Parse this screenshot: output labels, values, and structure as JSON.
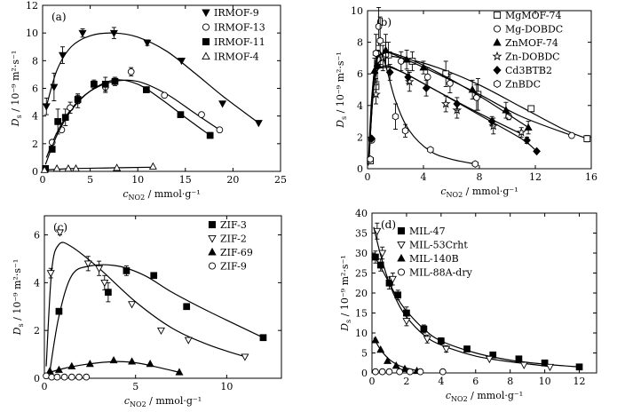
{
  "chart_data": [
    {
      "panel_label": "(a)",
      "type": "scatter",
      "xlim": [
        0,
        25
      ],
      "ylim": [
        0,
        12
      ],
      "xticks": [
        0,
        5,
        10,
        15,
        20,
        25
      ],
      "yticks": [
        0,
        2,
        4,
        6,
        8,
        10,
        12
      ],
      "xlabel_main": "c",
      "xlabel_sub": "NO2",
      "xlabel_rest": " / mmol·g⁻¹",
      "ylabel_main": "D",
      "ylabel_sub": "s",
      "ylabel_rest": " / 10⁻⁹ m²·s⁻¹",
      "legend_position": "top-right",
      "series": [
        {
          "name": "IRMOF-9",
          "marker": "triangle-down-filled",
          "x": [
            0.4,
            1.2,
            2.1,
            4.2,
            7.5,
            11.0,
            14.6,
            18.9,
            22.7
          ],
          "y": [
            4.7,
            6.1,
            8.4,
            10.0,
            10.0,
            9.3,
            8.0,
            4.9,
            3.5
          ],
          "err": [
            0.6,
            1.0,
            0.6,
            0.3,
            0.4,
            0.2,
            0,
            0,
            0
          ],
          "fit_x": [
            0.4,
            1.5,
            3,
            5,
            7.5,
            10,
            13,
            16,
            19,
            22.7
          ],
          "fit_y": [
            4.7,
            7.3,
            9.0,
            9.8,
            10.0,
            9.7,
            8.7,
            7.1,
            5.4,
            3.5
          ]
        },
        {
          "name": "IRMOF-13",
          "marker": "circle-open",
          "x": [
            1.0,
            2.0,
            2.9,
            3.7,
            6.6,
            9.3,
            12.8,
            16.7,
            18.6
          ],
          "y": [
            2.1,
            3.0,
            4.6,
            5.1,
            6.1,
            7.2,
            5.5,
            4.1,
            3.0
          ],
          "err": [
            0,
            0,
            0.4,
            0.5,
            0.4,
            0.3,
            0,
            0,
            0
          ],
          "fit_x": [
            0.4,
            1.5,
            3,
            5,
            7.5,
            10,
            13,
            16,
            18.6
          ],
          "fit_y": [
            1.0,
            2.8,
            4.5,
            5.8,
            6.5,
            6.5,
            5.6,
            4.2,
            3.0
          ]
        },
        {
          "name": "IRMOF-11",
          "marker": "square-filled",
          "x": [
            0.3,
            1.0,
            1.6,
            2.4,
            3.7,
            5.4,
            6.6,
            7.6,
            10.9,
            14.5,
            17.6
          ],
          "y": [
            0.2,
            1.6,
            3.6,
            3.9,
            5.2,
            6.3,
            6.3,
            6.5,
            5.9,
            4.1,
            2.6
          ],
          "err": [
            0,
            0,
            0.9,
            0.6,
            0.3,
            0.3,
            0.5,
            0.3,
            0.2,
            0,
            0
          ],
          "fit_x": [
            0.3,
            1.5,
            3,
            5,
            7.5,
            10,
            12.5,
            15,
            17.6
          ],
          "fit_y": [
            0.5,
            2.6,
            4.4,
            5.8,
            6.6,
            6.3,
            5.2,
            3.9,
            2.6
          ]
        },
        {
          "name": "IRMOF-4",
          "marker": "triangle-up-open",
          "x": [
            0.2,
            1.5,
            2.7,
            3.5,
            7.8,
            11.6
          ],
          "y": [
            0.1,
            0.2,
            0.2,
            0.2,
            0.25,
            0.35
          ],
          "err": [
            0,
            0,
            0,
            0,
            0,
            0
          ],
          "fit_x": [
            0.2,
            3,
            7,
            11.6
          ],
          "fit_y": [
            0.1,
            0.2,
            0.25,
            0.3
          ]
        }
      ]
    },
    {
      "panel_label": "(b)",
      "type": "scatter",
      "xlim": [
        0,
        16
      ],
      "ylim": [
        0,
        10
      ],
      "xticks": [
        0,
        4,
        8,
        12,
        16
      ],
      "yticks": [
        0,
        2,
        4,
        6,
        8,
        10
      ],
      "xlabel_main": "c",
      "xlabel_sub": "NO2",
      "xlabel_rest": " / mmol·g⁻¹",
      "ylabel_main": "D",
      "ylabel_sub": "s",
      "ylabel_rest": " / 10⁻⁹ m²·s⁻¹",
      "legend_position": "top-right",
      "series": [
        {
          "name": "MgMOF-74",
          "marker": "square-open",
          "x": [
            0.2,
            0.6,
            1.5,
            3.2,
            5.6,
            7.9,
            11.7,
            15.7
          ],
          "y": [
            0.5,
            5.2,
            7.2,
            6.8,
            6.0,
            4.7,
            3.8,
            1.9
          ],
          "err": [
            0,
            0.5,
            0.8,
            0.6,
            0.8,
            1.0,
            0,
            0.2
          ],
          "fit_x": [
            0.1,
            0.5,
            1.2,
            2.5,
            5,
            8,
            11,
            14,
            15.7
          ],
          "fit_y": [
            0.6,
            5.8,
            7.0,
            7.0,
            6.4,
            5.3,
            3.9,
            2.5,
            1.9
          ]
        },
        {
          "name": "Mg-DOBDC",
          "marker": "circle-open",
          "x": [
            0.3,
            0.8,
            1.3,
            2.4,
            4.3,
            5.9,
            7.8,
            10.1,
            14.6
          ],
          "y": [
            1.8,
            9.0,
            7.2,
            6.8,
            5.8,
            5.4,
            4.5,
            3.3,
            2.1
          ],
          "err": [
            0,
            1.2,
            0.8,
            0.6,
            0.6,
            0.6,
            0.8,
            0.2,
            0
          ],
          "fit_x": [
            0.1,
            0.5,
            1.2,
            2.5,
            5,
            8,
            11,
            14.6
          ],
          "fit_y": [
            0.8,
            6.2,
            7.3,
            7.0,
            6.0,
            4.7,
            3.3,
            2.1
          ]
        },
        {
          "name": "ZnMOF-74",
          "marker": "triangle-up-filled",
          "x": [
            0.5,
            1.3,
            2.8,
            4.0,
            7.5,
            9.9,
            11.5
          ],
          "y": [
            6.2,
            7.5,
            6.9,
            6.4,
            5.0,
            3.7,
            2.6
          ],
          "err": [
            0.8,
            1.0,
            0.6,
            0.4,
            0.6,
            0.5,
            0.4
          ],
          "fit_x": [
            0.1,
            0.5,
            1.2,
            2.5,
            5,
            8,
            11,
            11.5
          ],
          "fit_y": [
            0.5,
            6.3,
            7.3,
            7.1,
            6.1,
            4.6,
            2.9,
            2.6
          ]
        },
        {
          "name": "Zn-DOBDC",
          "marker": "star-open",
          "x": [
            0.6,
            1.1,
            3.0,
            5.6,
            6.4,
            9.0,
            11.0
          ],
          "y": [
            4.7,
            7.0,
            5.5,
            4.1,
            3.7,
            2.7,
            2.3
          ],
          "err": [
            0.6,
            0.8,
            0.6,
            0.5,
            0.5,
            0.5,
            0.3
          ],
          "fit_x": [
            0.1,
            0.5,
            1.2,
            2.5,
            5,
            8,
            11
          ],
          "fit_y": [
            0.5,
            5.6,
            6.4,
            6.1,
            4.9,
            3.5,
            2.2
          ]
        },
        {
          "name": "Cd3BTB2",
          "marker": "diamond-filled",
          "x": [
            0.3,
            0.7,
            1.6,
            2.9,
            4.2,
            6.4,
            8.9,
            11.4,
            12.1
          ],
          "y": [
            1.9,
            6.5,
            6.1,
            5.8,
            5.1,
            4.1,
            3.0,
            1.8,
            1.1
          ],
          "err": [
            0,
            1.0,
            0.5,
            0.4,
            0.5,
            0.4,
            0.3,
            0.2,
            0
          ],
          "fit_x": [
            0.1,
            0.5,
            1.2,
            2.5,
            5,
            8,
            11,
            12.1
          ],
          "fit_y": [
            0.5,
            5.5,
            6.5,
            6.1,
            4.9,
            3.4,
            1.9,
            1.1
          ]
        },
        {
          "name": "ZnBDC",
          "marker": "hexagon-open",
          "x": [
            0.2,
            0.6,
            0.9,
            2.0,
            2.7,
            4.5,
            7.7
          ],
          "y": [
            0.6,
            7.3,
            8.1,
            3.3,
            2.4,
            1.2,
            0.3
          ],
          "err": [
            0,
            1.2,
            1.5,
            0.8,
            0.4,
            0.1,
            0
          ],
          "fit_x": [
            0.05,
            0.3,
            0.7,
            1.2,
            2,
            3,
            4.5,
            6,
            7.7
          ],
          "fit_y": [
            0.2,
            4.5,
            7.3,
            6.8,
            4.3,
            2.4,
            1.1,
            0.6,
            0.3
          ]
        }
      ]
    },
    {
      "panel_label": "(c)",
      "type": "scatter",
      "xlim": [
        0,
        13
      ],
      "ylim": [
        0,
        6.8
      ],
      "xticks": [
        0,
        5,
        10
      ],
      "yticks": [
        0,
        2,
        4,
        6
      ],
      "xlabel_main": "c",
      "xlabel_sub": "NO2",
      "xlabel_rest": " / mmol·g⁻¹",
      "ylabel_main": "D",
      "ylabel_sub": "s",
      "ylabel_rest": " / 10⁻⁹ m²·s⁻¹",
      "legend_position": "top-right",
      "series": [
        {
          "name": "ZIF-3",
          "marker": "square-filled",
          "x": [
            0.8,
            3.5,
            4.5,
            6.0,
            7.8,
            12.0
          ],
          "y": [
            2.8,
            3.6,
            4.5,
            4.3,
            3.0,
            1.7
          ],
          "err": [
            0,
            0.4,
            0.2,
            0,
            0,
            0
          ],
          "fit_x": [
            0.3,
            0.8,
            1.5,
            2.5,
            4,
            5.5,
            7,
            9,
            12
          ],
          "fit_y": [
            0.3,
            2.6,
            4.3,
            4.7,
            4.7,
            4.3,
            3.6,
            2.8,
            1.7
          ]
        },
        {
          "name": "ZIF-2",
          "marker": "triangle-down-open",
          "x": [
            0.35,
            0.85,
            3.0,
            2.4,
            3.3,
            4.8,
            6.4,
            7.9,
            11.0
          ],
          "y": [
            4.4,
            6.1,
            4.6,
            4.8,
            4.0,
            3.1,
            2.0,
            1.6,
            0.9
          ],
          "err": [
            0.2,
            0.1,
            0.3,
            0.3,
            0.3,
            0,
            0,
            0,
            0
          ],
          "fit_x": [
            0.1,
            0.4,
            0.8,
            1.5,
            3,
            5,
            7,
            9,
            11
          ],
          "fit_y": [
            0.5,
            4.5,
            5.6,
            5.5,
            4.6,
            3.2,
            2.1,
            1.4,
            0.9
          ]
        },
        {
          "name": "ZIF-69",
          "marker": "triangle-up-filled",
          "x": [
            0.3,
            0.8,
            1.5,
            2.5,
            3.8,
            4.8,
            5.8,
            7.4
          ],
          "y": [
            0.3,
            0.35,
            0.5,
            0.6,
            0.75,
            0.7,
            0.6,
            0.25
          ],
          "err": [
            0,
            0,
            0,
            0,
            0,
            0,
            0,
            0
          ],
          "fit_x": [
            0.1,
            1,
            2,
            3,
            4,
            5,
            6,
            7.4
          ],
          "fit_y": [
            0.2,
            0.4,
            0.55,
            0.65,
            0.7,
            0.65,
            0.5,
            0.25
          ]
        },
        {
          "name": "ZIF-9",
          "marker": "circle-open",
          "x": [
            0.1,
            0.4,
            0.7,
            1.1,
            1.5,
            1.9,
            2.3
          ],
          "y": [
            0.1,
            0.05,
            0.05,
            0.05,
            0.05,
            0.05,
            0.05
          ],
          "err": [
            0,
            0,
            0,
            0,
            0,
            0,
            0
          ],
          "fit_x": [],
          "fit_y": []
        }
      ]
    },
    {
      "panel_label": "(d)",
      "type": "scatter",
      "xlim": [
        0,
        13
      ],
      "ylim": [
        0,
        40
      ],
      "xticks": [
        0,
        2,
        4,
        6,
        8,
        10,
        12
      ],
      "yticks": [
        0,
        5,
        10,
        15,
        20,
        25,
        30,
        35,
        40
      ],
      "xlabel_main": "c",
      "xlabel_sub": "NO2",
      "xlabel_rest": " / mmol·g⁻¹",
      "ylabel_main": "D",
      "ylabel_sub": "s",
      "ylabel_rest": " / 10⁻⁹ m²·s⁻¹",
      "legend_position": "top-left",
      "series": [
        {
          "name": "MIL-47",
          "marker": "square-filled",
          "x": [
            0.2,
            0.5,
            1.0,
            1.5,
            2.0,
            3.0,
            4.0,
            5.5,
            7.0,
            8.5,
            10.0,
            12.0
          ],
          "y": [
            29.0,
            27.0,
            22.5,
            19.5,
            15.0,
            11.0,
            8.0,
            6.0,
            4.5,
            3.5,
            2.5,
            1.5
          ],
          "err": [
            1.5,
            1.5,
            1.5,
            1.2,
            1.5,
            1.0,
            0.8,
            0,
            0,
            0,
            0,
            0
          ],
          "fit_x": [
            0.1,
            0.5,
            1,
            1.5,
            2,
            3,
            4,
            6,
            8,
            10,
            12
          ],
          "fit_y": [
            29.5,
            26.5,
            22.5,
            18.5,
            15.5,
            11.0,
            8.0,
            5.0,
            3.2,
            2.2,
            1.5
          ]
        },
        {
          "name": "MIL-53Crht",
          "marker": "triangle-down-open",
          "x": [
            0.3,
            0.6,
            1.2,
            2.0,
            3.2,
            4.3,
            6.8,
            8.8,
            10.3
          ],
          "y": [
            35.5,
            30.0,
            23.5,
            13.0,
            8.5,
            6.0,
            3.5,
            2.0,
            1.5
          ],
          "err": [
            2.0,
            1.5,
            1.5,
            1.2,
            1.0,
            0.8,
            0,
            0,
            0
          ],
          "fit_x": [
            0.1,
            0.5,
            1,
            1.5,
            2,
            3,
            4,
            6,
            8,
            10.3
          ],
          "fit_y": [
            36.5,
            29.5,
            22.5,
            17.5,
            14.0,
            9.5,
            7.0,
            4.2,
            2.8,
            1.6
          ]
        },
        {
          "name": "MIL-140B",
          "marker": "triangle-up-filled",
          "x": [
            0.2,
            0.5,
            0.9,
            1.4,
            1.9,
            2.6
          ],
          "y": [
            8.2,
            5.8,
            3.0,
            1.8,
            1.0,
            0.5
          ],
          "err": [
            0,
            0,
            0,
            0,
            0,
            0
          ],
          "fit_x": [
            0.1,
            0.5,
            1,
            1.5,
            2,
            2.6
          ],
          "fit_y": [
            8.8,
            5.8,
            3.4,
            2.0,
            1.2,
            0.6
          ]
        },
        {
          "name": "MIL-88A-dry",
          "marker": "circle-open",
          "x": [
            0.2,
            0.6,
            1.0,
            1.6,
            2.2,
            2.8,
            4.1
          ],
          "y": [
            0.3,
            0.3,
            0.3,
            0.3,
            0.3,
            0.3,
            0.3
          ],
          "err": [
            0,
            0,
            0,
            0,
            0,
            0,
            0
          ],
          "fit_x": [],
          "fit_y": []
        }
      ]
    }
  ]
}
